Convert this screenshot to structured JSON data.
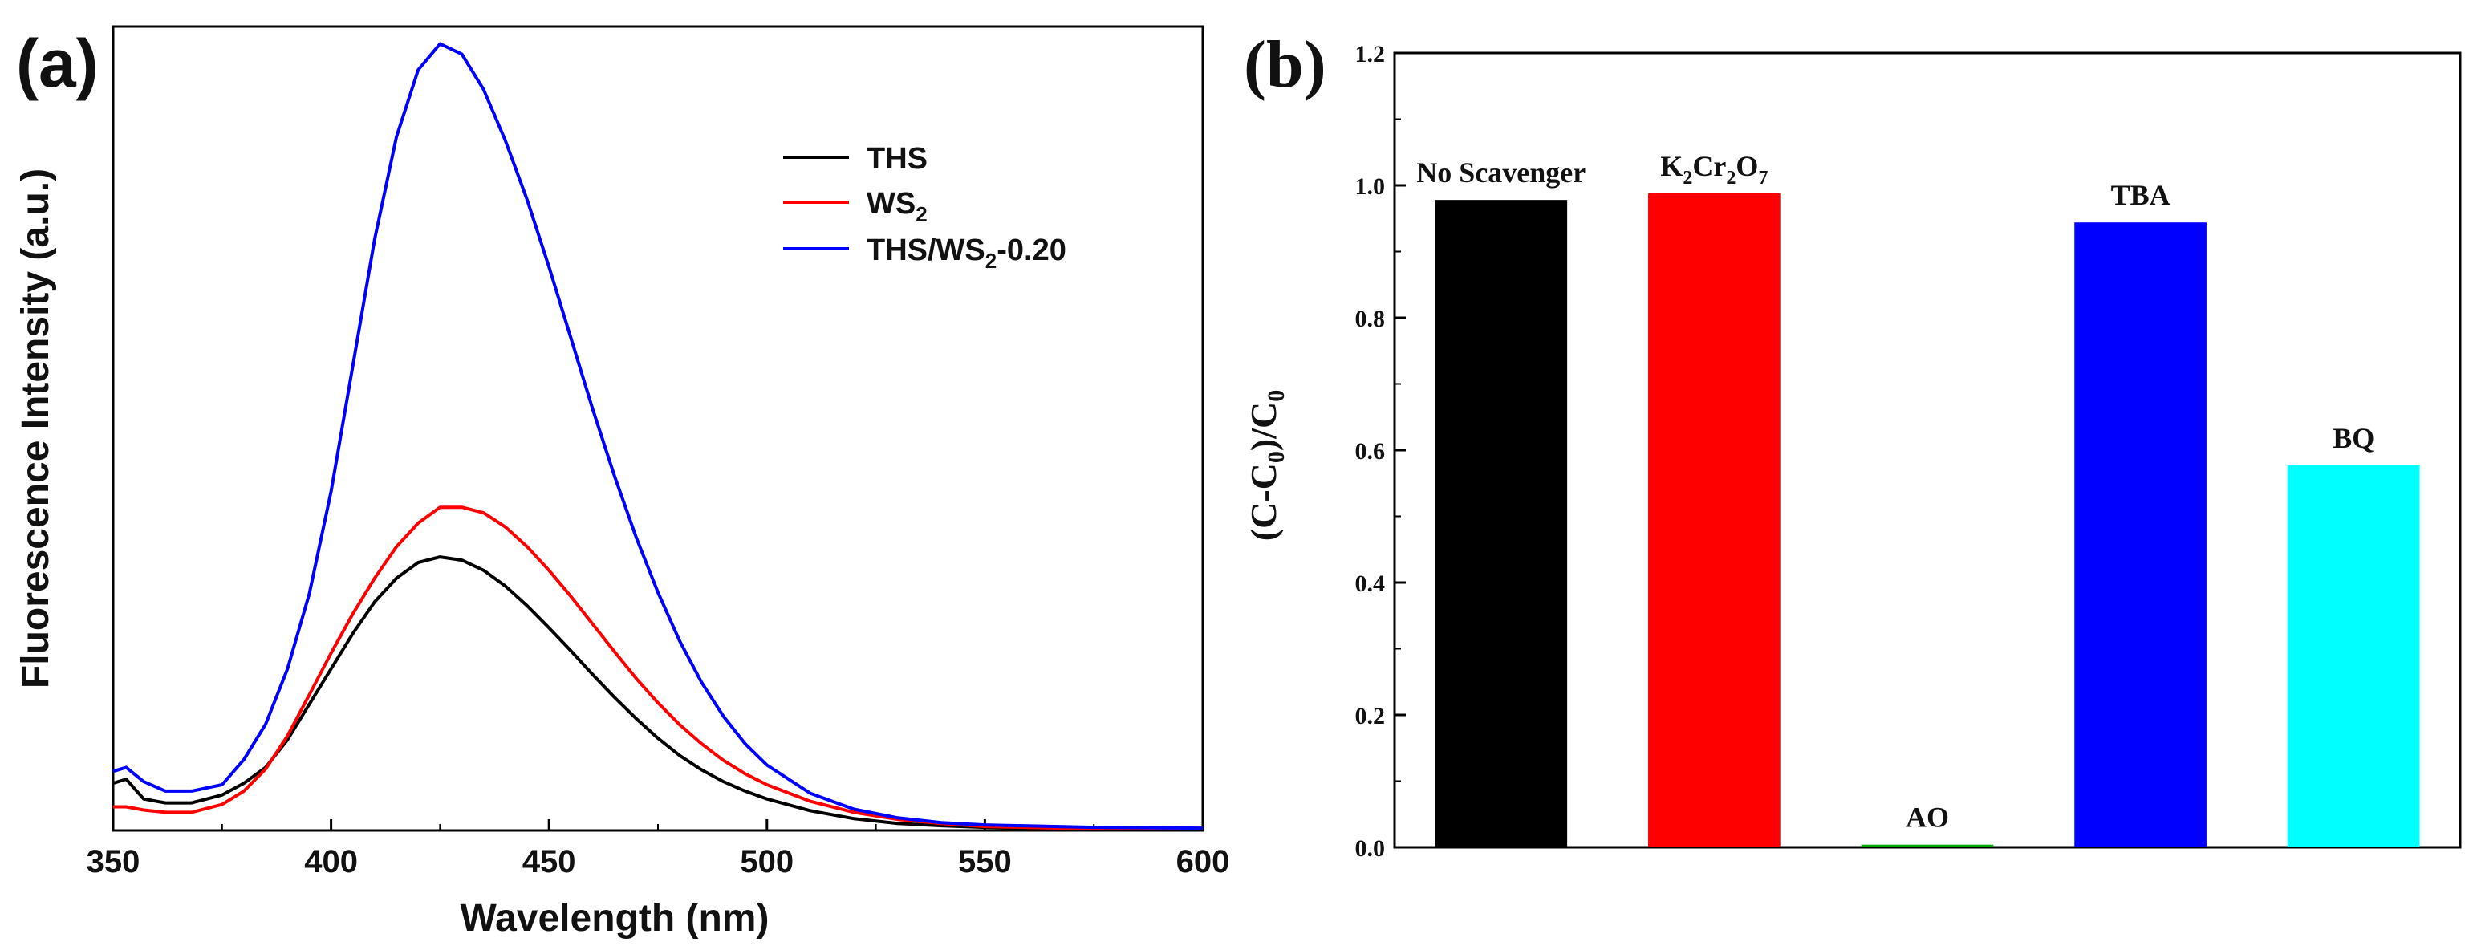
{
  "figure": {
    "label_a": "(a)",
    "label_b": "(b)"
  },
  "chart_data": [
    {
      "type": "line",
      "panel": "(a)",
      "title": "",
      "xlabel": "Wavelength (nm)",
      "ylabel": "Fluorescence Intensity (a.u.)",
      "xlim": [
        350,
        600
      ],
      "ylim": [
        0,
        1.02
      ],
      "xticks": [
        350,
        400,
        450,
        500,
        550,
        600
      ],
      "yticks_labeled": false,
      "legend_position": "top-right",
      "series": [
        {
          "name": "THS",
          "sub": "",
          "suffix": "",
          "color": "#000000",
          "points": [
            [
              350,
              0.06
            ],
            [
              353,
              0.065
            ],
            [
              357,
              0.04
            ],
            [
              362,
              0.035
            ],
            [
              368,
              0.035
            ],
            [
              375,
              0.045
            ],
            [
              380,
              0.06
            ],
            [
              385,
              0.08
            ],
            [
              390,
              0.115
            ],
            [
              395,
              0.16
            ],
            [
              400,
              0.205
            ],
            [
              405,
              0.25
            ],
            [
              410,
              0.29
            ],
            [
              415,
              0.32
            ],
            [
              420,
              0.34
            ],
            [
              425,
              0.347
            ],
            [
              430,
              0.343
            ],
            [
              435,
              0.33
            ],
            [
              440,
              0.31
            ],
            [
              445,
              0.285
            ],
            [
              450,
              0.257
            ],
            [
              455,
              0.228
            ],
            [
              460,
              0.198
            ],
            [
              465,
              0.169
            ],
            [
              470,
              0.142
            ],
            [
              475,
              0.117
            ],
            [
              480,
              0.095
            ],
            [
              485,
              0.077
            ],
            [
              490,
              0.062
            ],
            [
              495,
              0.05
            ],
            [
              500,
              0.04
            ],
            [
              510,
              0.025
            ],
            [
              520,
              0.015
            ],
            [
              530,
              0.009
            ],
            [
              540,
              0.006
            ],
            [
              550,
              0.004
            ],
            [
              575,
              0.002
            ],
            [
              600,
              0.002
            ]
          ]
        },
        {
          "name": "WS",
          "sub": "2",
          "suffix": "",
          "color": "#ff0000",
          "points": [
            [
              350,
              0.03
            ],
            [
              353,
              0.03
            ],
            [
              357,
              0.026
            ],
            [
              362,
              0.023
            ],
            [
              368,
              0.023
            ],
            [
              375,
              0.033
            ],
            [
              380,
              0.05
            ],
            [
              385,
              0.078
            ],
            [
              390,
              0.12
            ],
            [
              395,
              0.172
            ],
            [
              400,
              0.225
            ],
            [
              405,
              0.275
            ],
            [
              410,
              0.32
            ],
            [
              415,
              0.36
            ],
            [
              420,
              0.39
            ],
            [
              425,
              0.41
            ],
            [
              430,
              0.41
            ],
            [
              435,
              0.403
            ],
            [
              440,
              0.385
            ],
            [
              445,
              0.36
            ],
            [
              450,
              0.33
            ],
            [
              455,
              0.297
            ],
            [
              460,
              0.262
            ],
            [
              465,
              0.227
            ],
            [
              470,
              0.193
            ],
            [
              475,
              0.162
            ],
            [
              480,
              0.134
            ],
            [
              485,
              0.11
            ],
            [
              490,
              0.089
            ],
            [
              495,
              0.072
            ],
            [
              500,
              0.058
            ],
            [
              510,
              0.037
            ],
            [
              520,
              0.023
            ],
            [
              530,
              0.014
            ],
            [
              540,
              0.009
            ],
            [
              550,
              0.005
            ],
            [
              575,
              0.002
            ],
            [
              600,
              0.002
            ]
          ]
        },
        {
          "name": "THS/WS",
          "sub": "2",
          "suffix": "-0.20",
          "color": "#0000ff",
          "points": [
            [
              350,
              0.075
            ],
            [
              353,
              0.08
            ],
            [
              357,
              0.062
            ],
            [
              362,
              0.05
            ],
            [
              368,
              0.05
            ],
            [
              375,
              0.058
            ],
            [
              380,
              0.09
            ],
            [
              385,
              0.135
            ],
            [
              390,
              0.205
            ],
            [
              395,
              0.3
            ],
            [
              400,
              0.43
            ],
            [
              405,
              0.59
            ],
            [
              410,
              0.75
            ],
            [
              415,
              0.88
            ],
            [
              420,
              0.965
            ],
            [
              425,
              0.998
            ],
            [
              430,
              0.985
            ],
            [
              435,
              0.94
            ],
            [
              440,
              0.875
            ],
            [
              445,
              0.8
            ],
            [
              450,
              0.715
            ],
            [
              455,
              0.625
            ],
            [
              460,
              0.535
            ],
            [
              465,
              0.45
            ],
            [
              470,
              0.372
            ],
            [
              475,
              0.302
            ],
            [
              480,
              0.24
            ],
            [
              485,
              0.188
            ],
            [
              490,
              0.145
            ],
            [
              495,
              0.11
            ],
            [
              500,
              0.083
            ],
            [
              510,
              0.047
            ],
            [
              520,
              0.027
            ],
            [
              530,
              0.016
            ],
            [
              540,
              0.01
            ],
            [
              550,
              0.007
            ],
            [
              575,
              0.004
            ],
            [
              600,
              0.003
            ]
          ]
        }
      ]
    },
    {
      "type": "bar",
      "panel": "(b)",
      "title": "",
      "xlabel": "",
      "ylabel": "(C-C0)/C0",
      "ylim": [
        0,
        1.2
      ],
      "yticks": [
        0.0,
        0.2,
        0.4,
        0.6,
        0.8,
        1.0,
        1.2
      ],
      "ytick_labels": [
        "0.0",
        "0.2",
        "0.4",
        "0.6",
        "0.8",
        "1.0",
        "1.2"
      ],
      "categories": [
        "No Scavenger",
        "K2Cr2O7",
        "AO",
        "TBA",
        "BQ"
      ],
      "values": [
        0.978,
        0.988,
        0.004,
        0.944,
        0.577
      ],
      "colors": [
        "#000000",
        "#ff0000",
        "#00aa00",
        "#0000ff",
        "#00ffff"
      ]
    }
  ]
}
